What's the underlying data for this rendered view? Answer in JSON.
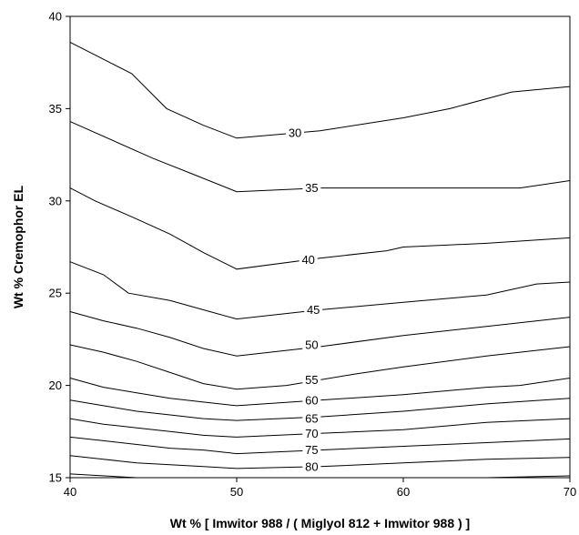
{
  "chart_data": {
    "type": "contour",
    "title": "",
    "xlabel": "Wt % [ Imwitor 988 / ( Miglyol 812 + Imwitor 988 ) ]",
    "ylabel": "Wt % Cremophor EL",
    "xlim": [
      40,
      70
    ],
    "ylim": [
      15,
      40
    ],
    "xticks": [
      40,
      50,
      60,
      70
    ],
    "yticks": [
      15,
      20,
      25,
      30,
      35,
      40
    ],
    "grid": false,
    "legend": "none",
    "series": [
      {
        "label": "30",
        "label_at": [
          53.5,
          33.7
        ],
        "points": [
          [
            40,
            38.6
          ],
          [
            43.7,
            36.9
          ],
          [
            45.8,
            35.0
          ],
          [
            48,
            34.1
          ],
          [
            50,
            33.4
          ],
          [
            55,
            33.8
          ],
          [
            60,
            34.5
          ],
          [
            62.8,
            35.0
          ],
          [
            66.5,
            35.9
          ],
          [
            70,
            36.2
          ]
        ]
      },
      {
        "label": "35",
        "label_at": [
          54.5,
          30.7
        ],
        "points": [
          [
            40,
            34.3
          ],
          [
            45,
            32.3
          ],
          [
            47.5,
            31.4
          ],
          [
            50,
            30.5
          ],
          [
            55,
            30.7
          ],
          [
            60,
            30.7
          ],
          [
            67,
            30.7
          ],
          [
            70,
            31.1
          ]
        ]
      },
      {
        "label": "40",
        "label_at": [
          54.3,
          26.8
        ],
        "points": [
          [
            40,
            30.7
          ],
          [
            41.5,
            30.0
          ],
          [
            43.8,
            29.1
          ],
          [
            46,
            28.2
          ],
          [
            48,
            27.2
          ],
          [
            50,
            26.3
          ],
          [
            55,
            26.9
          ],
          [
            59,
            27.3
          ],
          [
            60,
            27.5
          ],
          [
            65,
            27.7
          ],
          [
            70,
            28.0
          ]
        ]
      },
      {
        "label": "45",
        "label_at": [
          54.6,
          24.1
        ],
        "points": [
          [
            40,
            26.7
          ],
          [
            42,
            26.0
          ],
          [
            43.5,
            25.0
          ],
          [
            46,
            24.6
          ],
          [
            48,
            24.1
          ],
          [
            50,
            23.6
          ],
          [
            55,
            24.1
          ],
          [
            60,
            24.5
          ],
          [
            65,
            24.9
          ],
          [
            68,
            25.5
          ],
          [
            70,
            25.6
          ]
        ]
      },
      {
        "label": "50",
        "label_at": [
          54.5,
          22.2
        ],
        "points": [
          [
            40,
            24.0
          ],
          [
            42,
            23.5
          ],
          [
            44,
            23.1
          ],
          [
            46,
            22.6
          ],
          [
            48,
            22.0
          ],
          [
            50,
            21.6
          ],
          [
            55,
            22.1
          ],
          [
            60,
            22.7
          ],
          [
            65,
            23.2
          ],
          [
            70,
            23.7
          ]
        ]
      },
      {
        "label": "55",
        "label_at": [
          54.5,
          20.3
        ],
        "points": [
          [
            40,
            22.2
          ],
          [
            42,
            21.8
          ],
          [
            44,
            21.3
          ],
          [
            46,
            20.7
          ],
          [
            48,
            20.1
          ],
          [
            50,
            19.8
          ],
          [
            53,
            20.0
          ],
          [
            57,
            20.6
          ],
          [
            60,
            21.0
          ],
          [
            65,
            21.6
          ],
          [
            70,
            22.1
          ]
        ]
      },
      {
        "label": "60",
        "label_at": [
          54.5,
          19.2
        ],
        "points": [
          [
            40,
            20.4
          ],
          [
            42,
            19.9
          ],
          [
            44,
            19.6
          ],
          [
            46,
            19.3
          ],
          [
            48,
            19.1
          ],
          [
            50,
            18.9
          ],
          [
            55,
            19.2
          ],
          [
            60,
            19.5
          ],
          [
            65,
            19.9
          ],
          [
            67,
            20.0
          ],
          [
            70,
            20.4
          ]
        ]
      },
      {
        "label": "65",
        "label_at": [
          54.5,
          18.2
        ],
        "points": [
          [
            40,
            19.2
          ],
          [
            42,
            18.9
          ],
          [
            44,
            18.6
          ],
          [
            46,
            18.4
          ],
          [
            48,
            18.2
          ],
          [
            50,
            18.1
          ],
          [
            55,
            18.3
          ],
          [
            60,
            18.6
          ],
          [
            65,
            19.0
          ],
          [
            70,
            19.3
          ]
        ]
      },
      {
        "label": "70",
        "label_at": [
          54.5,
          17.4
        ],
        "points": [
          [
            40,
            18.2
          ],
          [
            42,
            17.9
          ],
          [
            44,
            17.7
          ],
          [
            46,
            17.5
          ],
          [
            48,
            17.3
          ],
          [
            50,
            17.2
          ],
          [
            55,
            17.4
          ],
          [
            60,
            17.6
          ],
          [
            65,
            18.0
          ],
          [
            70,
            18.2
          ]
        ]
      },
      {
        "label": "75",
        "label_at": [
          54.5,
          16.5
        ],
        "points": [
          [
            40,
            17.2
          ],
          [
            42,
            17.0
          ],
          [
            44,
            16.8
          ],
          [
            46,
            16.6
          ],
          [
            48,
            16.5
          ],
          [
            50,
            16.3
          ],
          [
            55,
            16.5
          ],
          [
            60,
            16.7
          ],
          [
            65,
            16.9
          ],
          [
            70,
            17.1
          ]
        ]
      },
      {
        "label": "80",
        "label_at": [
          54.5,
          15.6
        ],
        "points": [
          [
            40,
            16.2
          ],
          [
            42,
            16.0
          ],
          [
            44,
            15.8
          ],
          [
            46,
            15.7
          ],
          [
            48,
            15.6
          ],
          [
            50,
            15.5
          ],
          [
            55,
            15.6
          ],
          [
            60,
            15.8
          ],
          [
            65,
            16.0
          ],
          [
            70,
            16.1
          ]
        ]
      },
      {
        "label": "",
        "label_at": null,
        "points": [
          [
            40,
            15.2
          ],
          [
            44,
            15.0
          ]
        ]
      },
      {
        "label": "",
        "label_at": null,
        "points": [
          [
            65,
            15.0
          ],
          [
            70,
            15.1
          ]
        ]
      }
    ]
  }
}
